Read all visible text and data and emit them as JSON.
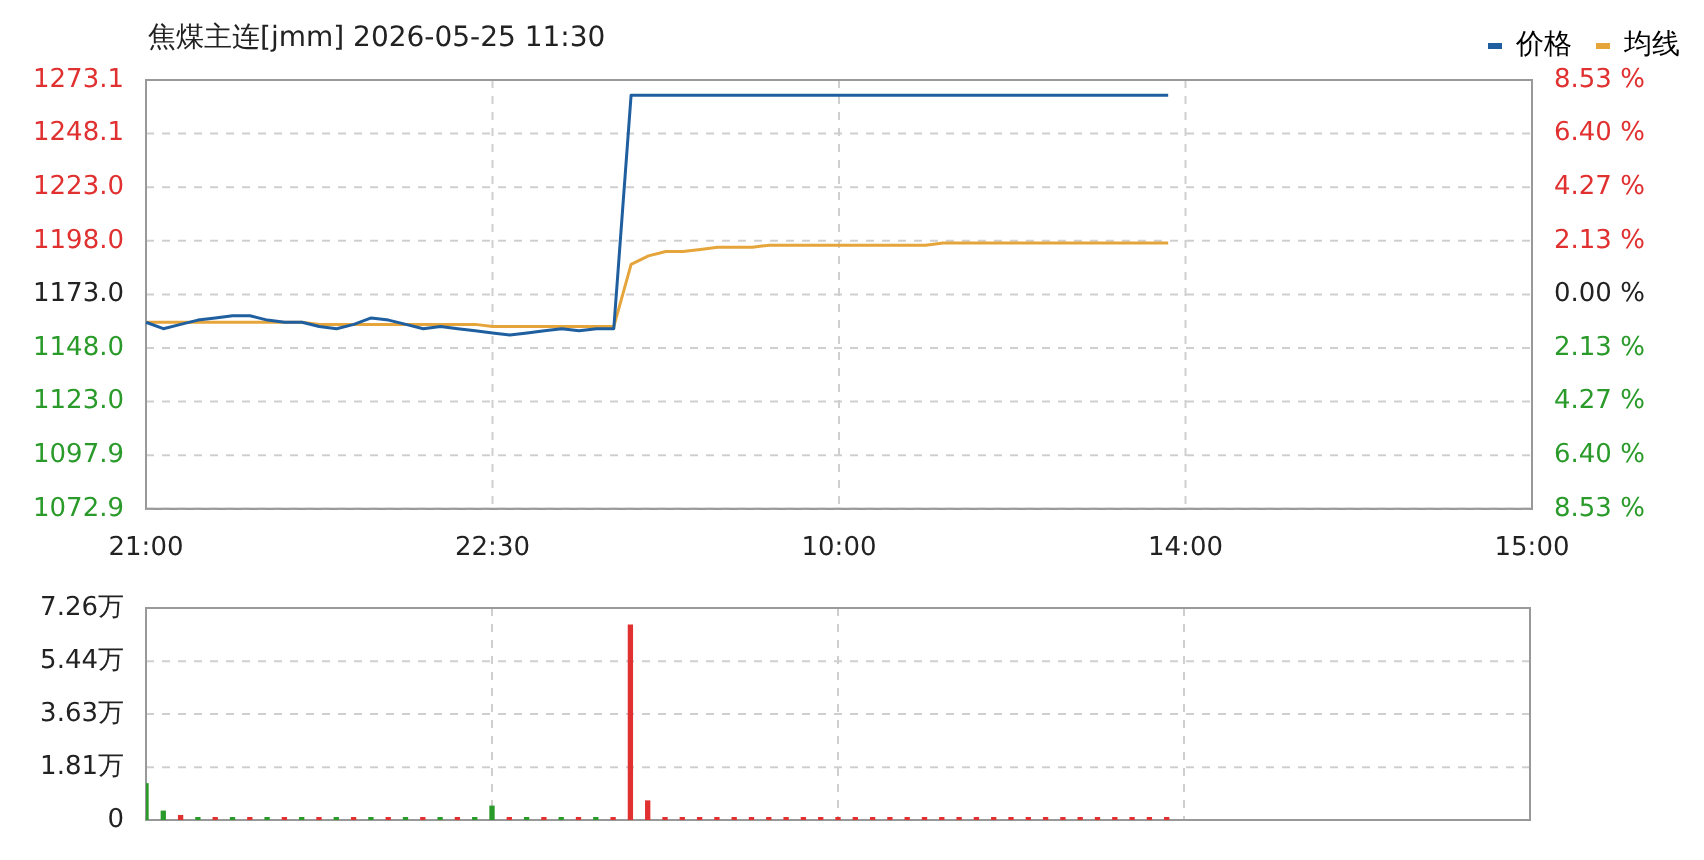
{
  "chart_data": [
    {
      "type": "line",
      "title": "焦煤主连[jmm] 2026-05-25 11:30",
      "legend": "top right",
      "grid": true,
      "marker": "none",
      "line_style": "solid",
      "categories": [
        "21:00",
        null,
        null,
        null,
        null,
        null,
        null,
        null,
        null,
        null,
        null,
        null,
        null,
        null,
        null,
        null,
        null,
        null,
        null,
        null,
        "22:30",
        null,
        null,
        null,
        null,
        null,
        null,
        null,
        null,
        null,
        null,
        null,
        null,
        null,
        null,
        null,
        null,
        null,
        null,
        null,
        "10:00",
        null,
        null,
        null,
        null,
        null,
        null,
        null,
        null,
        null,
        null,
        null,
        null,
        null,
        null,
        null,
        null,
        null,
        null,
        null,
        "14:00",
        null,
        null,
        null,
        null,
        null,
        null,
        null,
        null,
        null,
        null,
        null,
        null,
        null,
        null,
        null,
        null,
        null,
        null,
        null,
        "15:00"
      ],
      "series": [
        {
          "name": "价格",
          "color": "#1f5f9f",
          "values": [
            1160,
            1157,
            1159,
            1161,
            1162,
            1163,
            1163,
            1161,
            1160,
            1160,
            1158,
            1157,
            1159,
            1162,
            1161,
            1159,
            1157,
            1158,
            1157,
            1156,
            1155,
            1154,
            1155,
            1156,
            1157,
            1156,
            1157,
            1157,
            1266,
            1266,
            1266,
            1266,
            1266,
            1266,
            1266,
            1266,
            1266,
            1266,
            1266,
            1266,
            1266,
            1266,
            1266,
            1266,
            1266,
            1266,
            1266,
            1266,
            1266,
            1266,
            1266,
            1266,
            1266,
            1266,
            1266,
            1266,
            1266,
            1266,
            1266,
            1266,
            null,
            null,
            null,
            null,
            null,
            null,
            null,
            null,
            null,
            null,
            null,
            null,
            null,
            null,
            null,
            null,
            null,
            null,
            null,
            null,
            null
          ]
        },
        {
          "name": "均线",
          "color": "#e5a53a",
          "values": [
            1160,
            1160,
            1160,
            1160,
            1160,
            1160,
            1160,
            1160,
            1160,
            1160,
            1159,
            1159,
            1159,
            1159,
            1159,
            1159,
            1159,
            1159,
            1159,
            1159,
            1158,
            1158,
            1158,
            1158,
            1158,
            1158,
            1158,
            1158,
            1187,
            1191,
            1193,
            1193,
            1194,
            1195,
            1195,
            1195,
            1196,
            1196,
            1196,
            1196,
            1196,
            1196,
            1196,
            1196,
            1196,
            1196,
            1197,
            1197,
            1197,
            1197,
            1197,
            1197,
            1197,
            1197,
            1197,
            1197,
            1197,
            1197,
            1197,
            1197,
            null,
            null,
            null,
            null,
            null,
            null,
            null,
            null,
            null,
            null,
            null,
            null,
            null,
            null,
            null,
            null,
            null,
            null,
            null,
            null,
            null
          ]
        }
      ],
      "ylim": [
        1072.9,
        1273.1
      ],
      "yticks": [
        {
          "value": 1072.9,
          "label": "1072.9"
        },
        {
          "value": 1097.9,
          "label": "1097.9"
        },
        {
          "value": 1123,
          "label": "1123.0"
        },
        {
          "value": 1148,
          "label": "1148.0"
        },
        {
          "value": 1173,
          "label": "1173.0"
        },
        {
          "value": 1198,
          "label": "1198.0"
        },
        {
          "value": 1223,
          "label": "1223.0"
        },
        {
          "value": 1248.1,
          "label": "1248.1"
        },
        {
          "value": 1273.1,
          "label": "1273.1"
        }
      ],
      "y2lim": [
        -8.53,
        8.53
      ],
      "y2ticks": [
        {
          "value": -8.53,
          "label": "8.53 %"
        },
        {
          "value": -6.4,
          "label": "6.40 %"
        },
        {
          "value": -4.27,
          "label": "4.27 %"
        },
        {
          "value": -2.13,
          "label": "2.13 %"
        },
        {
          "value": 0,
          "label": "0.00 %"
        },
        {
          "value": 2.13,
          "label": "2.13 %"
        },
        {
          "value": 4.27,
          "label": "4.27 %"
        },
        {
          "value": 6.4,
          "label": "6.40 %"
        },
        {
          "value": 8.53,
          "label": "8.53 %"
        }
      ]
    },
    {
      "type": "bar",
      "grid": true,
      "tick_labels": "y",
      "categories": [
        null,
        null,
        null,
        null,
        null,
        null,
        null,
        null,
        null,
        null,
        null,
        null,
        null,
        null,
        null,
        null,
        null,
        null,
        null,
        null,
        null,
        null,
        null,
        null,
        null,
        null,
        null,
        null,
        null,
        null,
        null,
        null,
        null,
        null,
        null,
        null,
        null,
        null,
        null,
        null,
        null,
        null,
        null,
        null,
        null,
        null,
        null,
        null,
        null,
        null,
        null,
        null,
        null,
        null,
        null,
        null,
        null,
        null,
        null,
        null,
        null,
        null,
        null,
        null,
        null,
        null,
        null,
        null,
        null,
        null,
        null,
        null,
        null,
        null,
        null,
        null,
        null,
        null,
        null,
        null,
        null
      ],
      "values": [
        1.24,
        0.3,
        0.15,
        0.08,
        0.08,
        0.08,
        0.08,
        0.08,
        0.08,
        0.08,
        0.08,
        0.08,
        0.08,
        0.08,
        0.08,
        0.08,
        0.08,
        0.08,
        0.08,
        0.08,
        0.47,
        0.08,
        0.08,
        0.08,
        0.08,
        0.08,
        0.08,
        0.08,
        6.67,
        0.65,
        0.08,
        0.08,
        0.08,
        0.08,
        0.08,
        0.08,
        0.08,
        0.08,
        0.08,
        0.08,
        0.08,
        0.08,
        0.08,
        0.08,
        0.08,
        0.08,
        0.08,
        0.08,
        0.08,
        0.08,
        0.08,
        0.08,
        0.08,
        0.08,
        0.08,
        0.08,
        0.08,
        0.08,
        0.08,
        0.08,
        null,
        null,
        null,
        null,
        null,
        null,
        null,
        null,
        null,
        null,
        null,
        null,
        null,
        null,
        null,
        null,
        null,
        null,
        null,
        null,
        null
      ],
      "colors": [
        "#2a9a2a",
        "#2a9a2a",
        "#e03030",
        "#2a9a2a",
        "#e03030",
        "#2a9a2a",
        "#e03030",
        "#2a9a2a",
        "#e03030",
        "#2a9a2a",
        "#e03030",
        "#2a9a2a",
        "#e03030",
        "#2a9a2a",
        "#e03030",
        "#2a9a2a",
        "#e03030",
        "#2a9a2a",
        "#e03030",
        "#2a9a2a",
        "#2a9a2a",
        "#e03030",
        "#2a9a2a",
        "#e03030",
        "#2a9a2a",
        "#e03030",
        "#2a9a2a",
        "#e03030",
        "#e03030",
        "#e03030",
        "#e03030",
        "#e03030",
        "#e03030",
        "#e03030",
        "#e03030",
        "#e03030",
        "#e03030",
        "#e03030",
        "#e03030",
        "#e03030",
        "#e03030",
        "#e03030",
        "#e03030",
        "#e03030",
        "#e03030",
        "#e03030",
        "#e03030",
        "#e03030",
        "#e03030",
        "#e03030",
        "#e03030",
        "#e03030",
        "#e03030",
        "#e03030",
        "#e03030",
        "#e03030",
        "#e03030",
        "#e03030",
        "#e03030",
        "#e03030",
        null,
        null,
        null,
        null,
        null,
        null,
        null,
        null,
        null,
        null,
        null,
        null,
        null,
        null,
        null,
        null,
        null,
        null,
        null,
        null,
        null
      ],
      "ylim": [
        0,
        7.26
      ],
      "yticks": [
        {
          "value": 0,
          "label": "0"
        },
        {
          "value": 1.81,
          "label": "1.81万"
        },
        {
          "value": 3.63,
          "label": "3.63万"
        },
        {
          "value": 5.44,
          "label": "5.44万"
        },
        {
          "value": 7.26,
          "label": "7.26万"
        }
      ]
    }
  ]
}
